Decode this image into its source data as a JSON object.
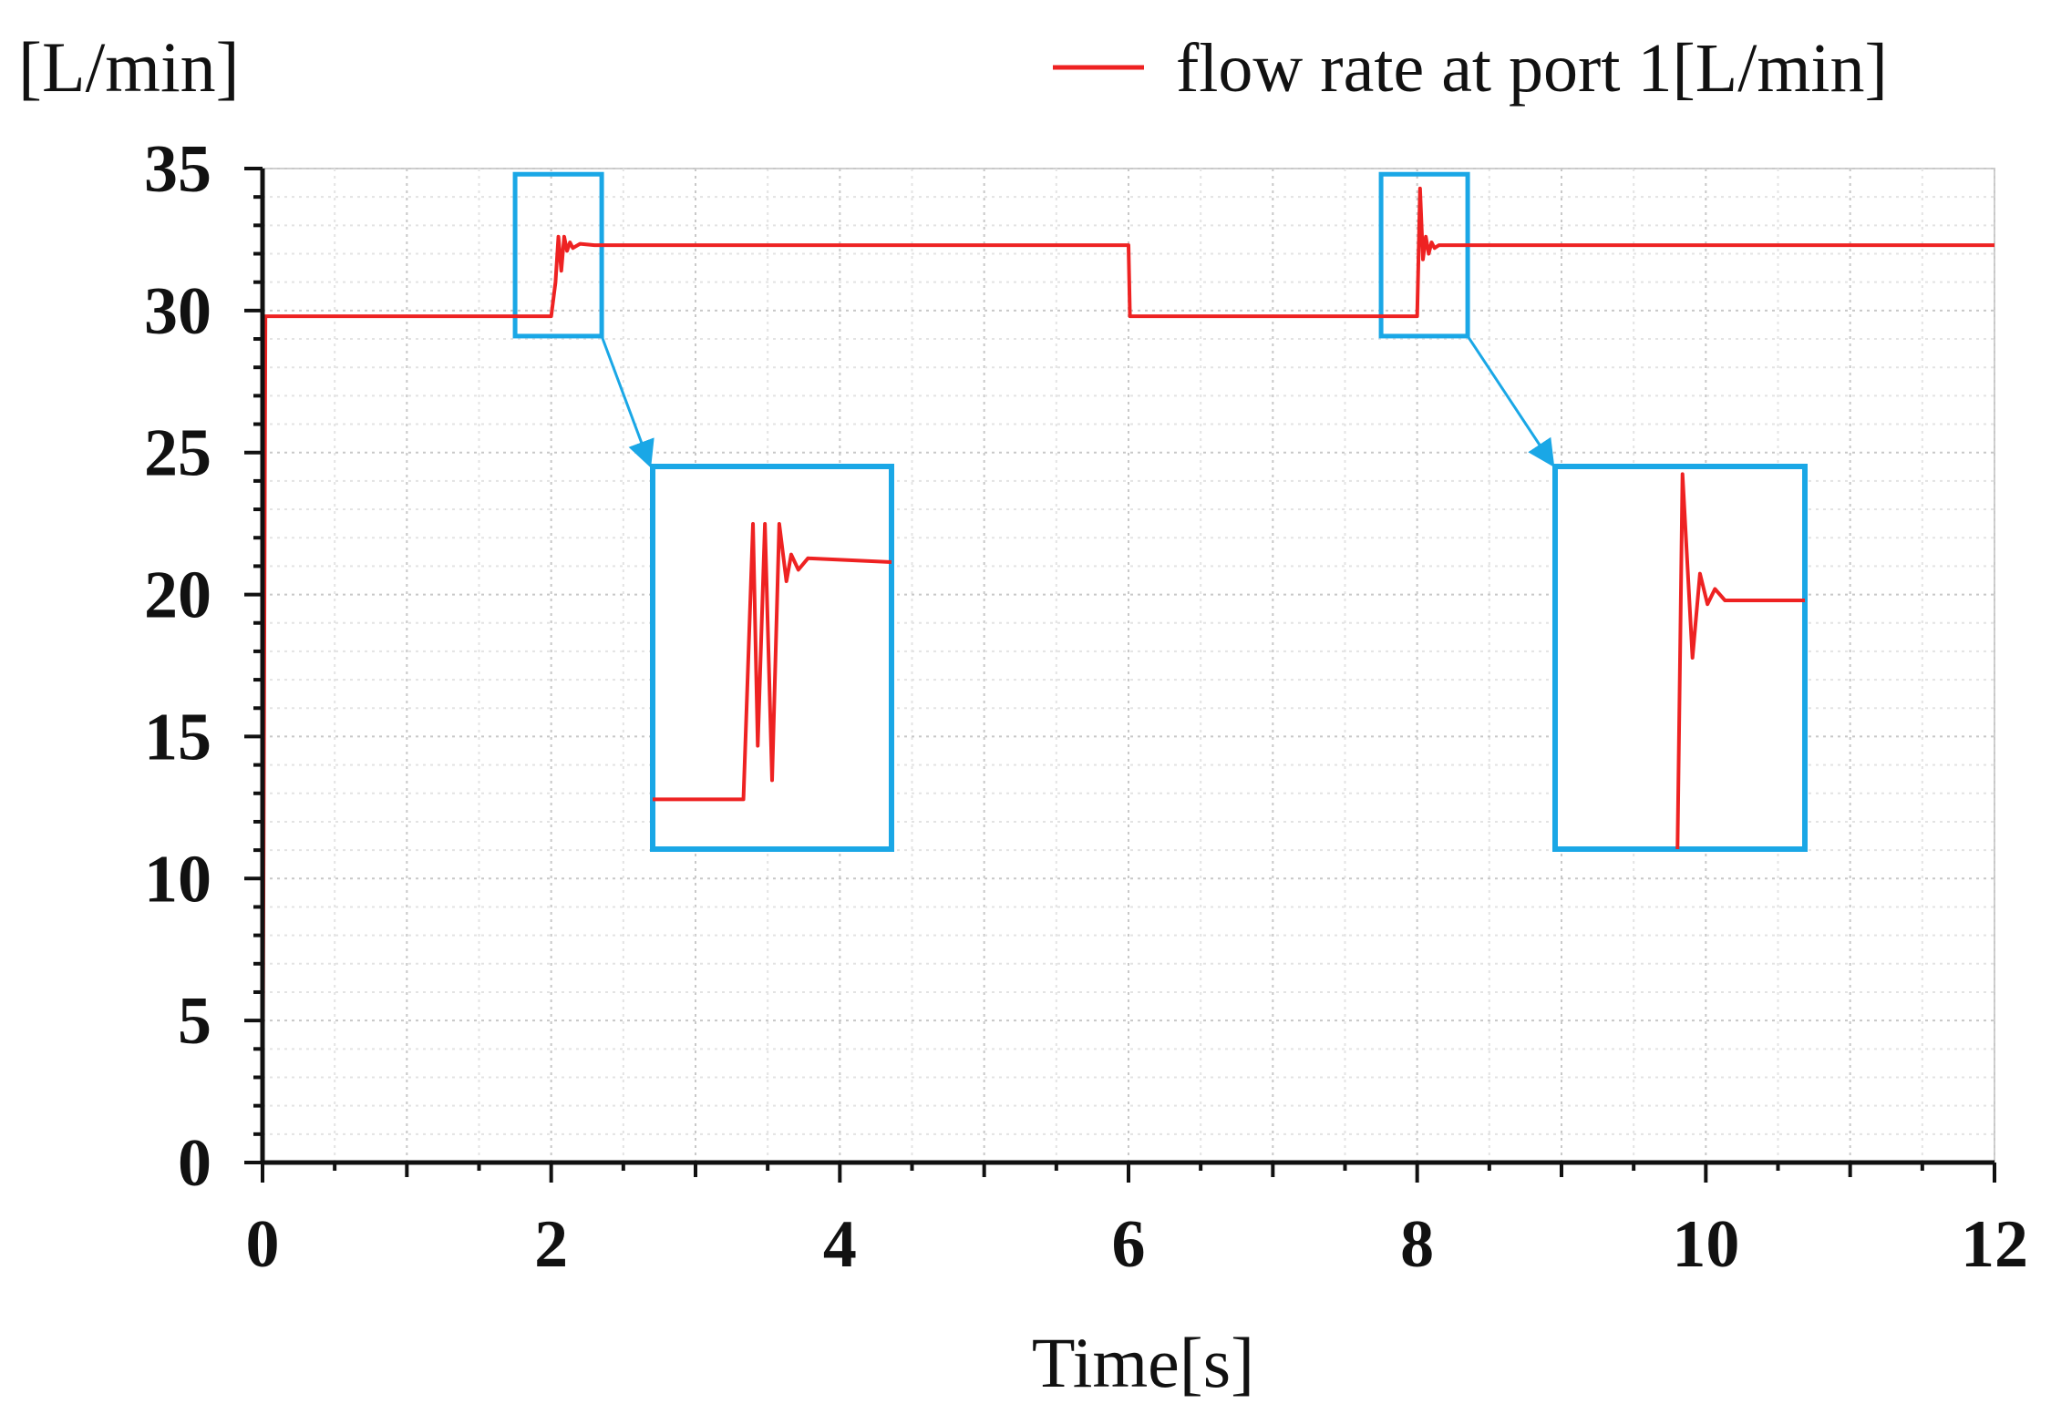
{
  "chart_data": {
    "type": "line",
    "title": "",
    "xlabel": "Time[s]",
    "ylabel": "[L/min]",
    "xlim": [
      0,
      12
    ],
    "ylim": [
      0,
      35
    ],
    "x_ticks": [
      0,
      2,
      4,
      6,
      8,
      10,
      12
    ],
    "y_ticks": [
      0,
      5,
      10,
      15,
      20,
      25,
      30,
      35
    ],
    "x_tick_labels": [
      "0",
      "2",
      "4",
      "6",
      "8",
      "10",
      "12"
    ],
    "y_tick_labels": [
      "0",
      "5",
      "10",
      "15",
      "20",
      "25",
      "30",
      "35"
    ],
    "grid": true,
    "legend_position": "top-right",
    "series": [
      {
        "name": "flow rate at port 1[L/min]",
        "color": "#ee2222",
        "x": [
          0,
          0.02,
          2.0,
          2.03,
          2.05,
          2.07,
          2.09,
          2.11,
          2.13,
          2.15,
          2.2,
          2.3,
          6.0,
          6.01,
          8.0,
          8.02,
          8.04,
          8.06,
          8.08,
          8.1,
          8.12,
          8.15,
          8.2,
          12.0
        ],
        "values": [
          0,
          29.8,
          29.8,
          31.0,
          32.6,
          31.4,
          32.6,
          32.1,
          32.4,
          32.2,
          32.35,
          32.3,
          32.3,
          29.8,
          29.8,
          34.3,
          31.8,
          32.6,
          32.0,
          32.4,
          32.2,
          32.3,
          32.3,
          32.3
        ]
      }
    ],
    "zoom_insets": [
      {
        "source_x": [
          1.75,
          2.35
        ],
        "source_y": [
          29.1,
          34.8
        ],
        "line_points": [
          [
            0,
            0.87
          ],
          [
            0.38,
            0.87
          ],
          [
            0.42,
            0.15
          ],
          [
            0.44,
            0.73
          ],
          [
            0.47,
            0.15
          ],
          [
            0.5,
            0.82
          ],
          [
            0.53,
            0.15
          ],
          [
            0.56,
            0.3
          ],
          [
            0.58,
            0.23
          ],
          [
            0.61,
            0.27
          ],
          [
            0.65,
            0.24
          ],
          [
            1.0,
            0.25
          ]
        ]
      },
      {
        "source_x": [
          7.75,
          8.35
        ],
        "source_y": [
          29.1,
          34.8
        ],
        "line_points": [
          [
            0.49,
            1.0
          ],
          [
            0.51,
            0.02
          ],
          [
            0.55,
            0.5
          ],
          [
            0.58,
            0.28
          ],
          [
            0.61,
            0.36
          ],
          [
            0.64,
            0.32
          ],
          [
            0.68,
            0.35
          ],
          [
            1.0,
            0.35
          ]
        ]
      }
    ],
    "inset_color": "#1aa7e6"
  }
}
